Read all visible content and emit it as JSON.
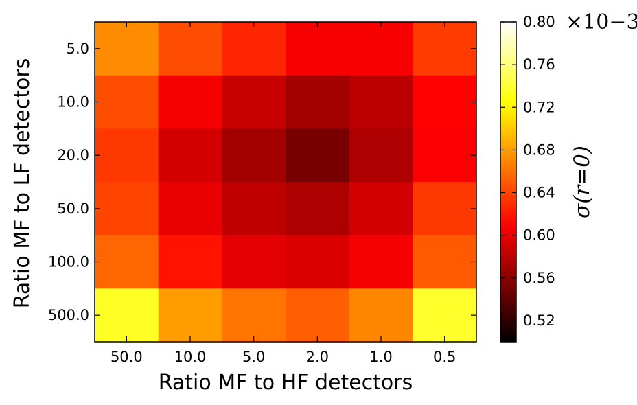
{
  "chart_data": {
    "type": "heatmap",
    "xlabel": "Ratio MF to HF detectors",
    "ylabel": "Ratio MF to LF detectors",
    "x_categories": [
      "50.0",
      "10.0",
      "5.0",
      "2.0",
      "1.0",
      "0.5"
    ],
    "y_categories": [
      "5.0",
      "10.0",
      "20.0",
      "50.0",
      "100.0",
      "500.0"
    ],
    "values": [
      [
        0.672,
        0.644,
        0.626,
        0.606,
        0.606,
        0.636
      ],
      [
        0.644,
        0.605,
        0.585,
        0.57,
        0.58,
        0.61
      ],
      [
        0.634,
        0.59,
        0.57,
        0.552,
        0.575,
        0.608
      ],
      [
        0.64,
        0.6,
        0.582,
        0.575,
        0.59,
        0.634
      ],
      [
        0.655,
        0.618,
        0.598,
        0.594,
        0.605,
        0.65
      ],
      [
        0.735,
        0.68,
        0.662,
        0.652,
        0.67,
        0.737
      ]
    ],
    "colorbar": {
      "label": "σ(r=0)",
      "vmin": 0.5,
      "vmax": 0.8,
      "ticks": [
        "0.52",
        "0.56",
        "0.60",
        "0.64",
        "0.68",
        "0.72",
        "0.76",
        "0.80"
      ],
      "offset_label": "×10−3",
      "colormap": "hot"
    },
    "grid": false
  }
}
